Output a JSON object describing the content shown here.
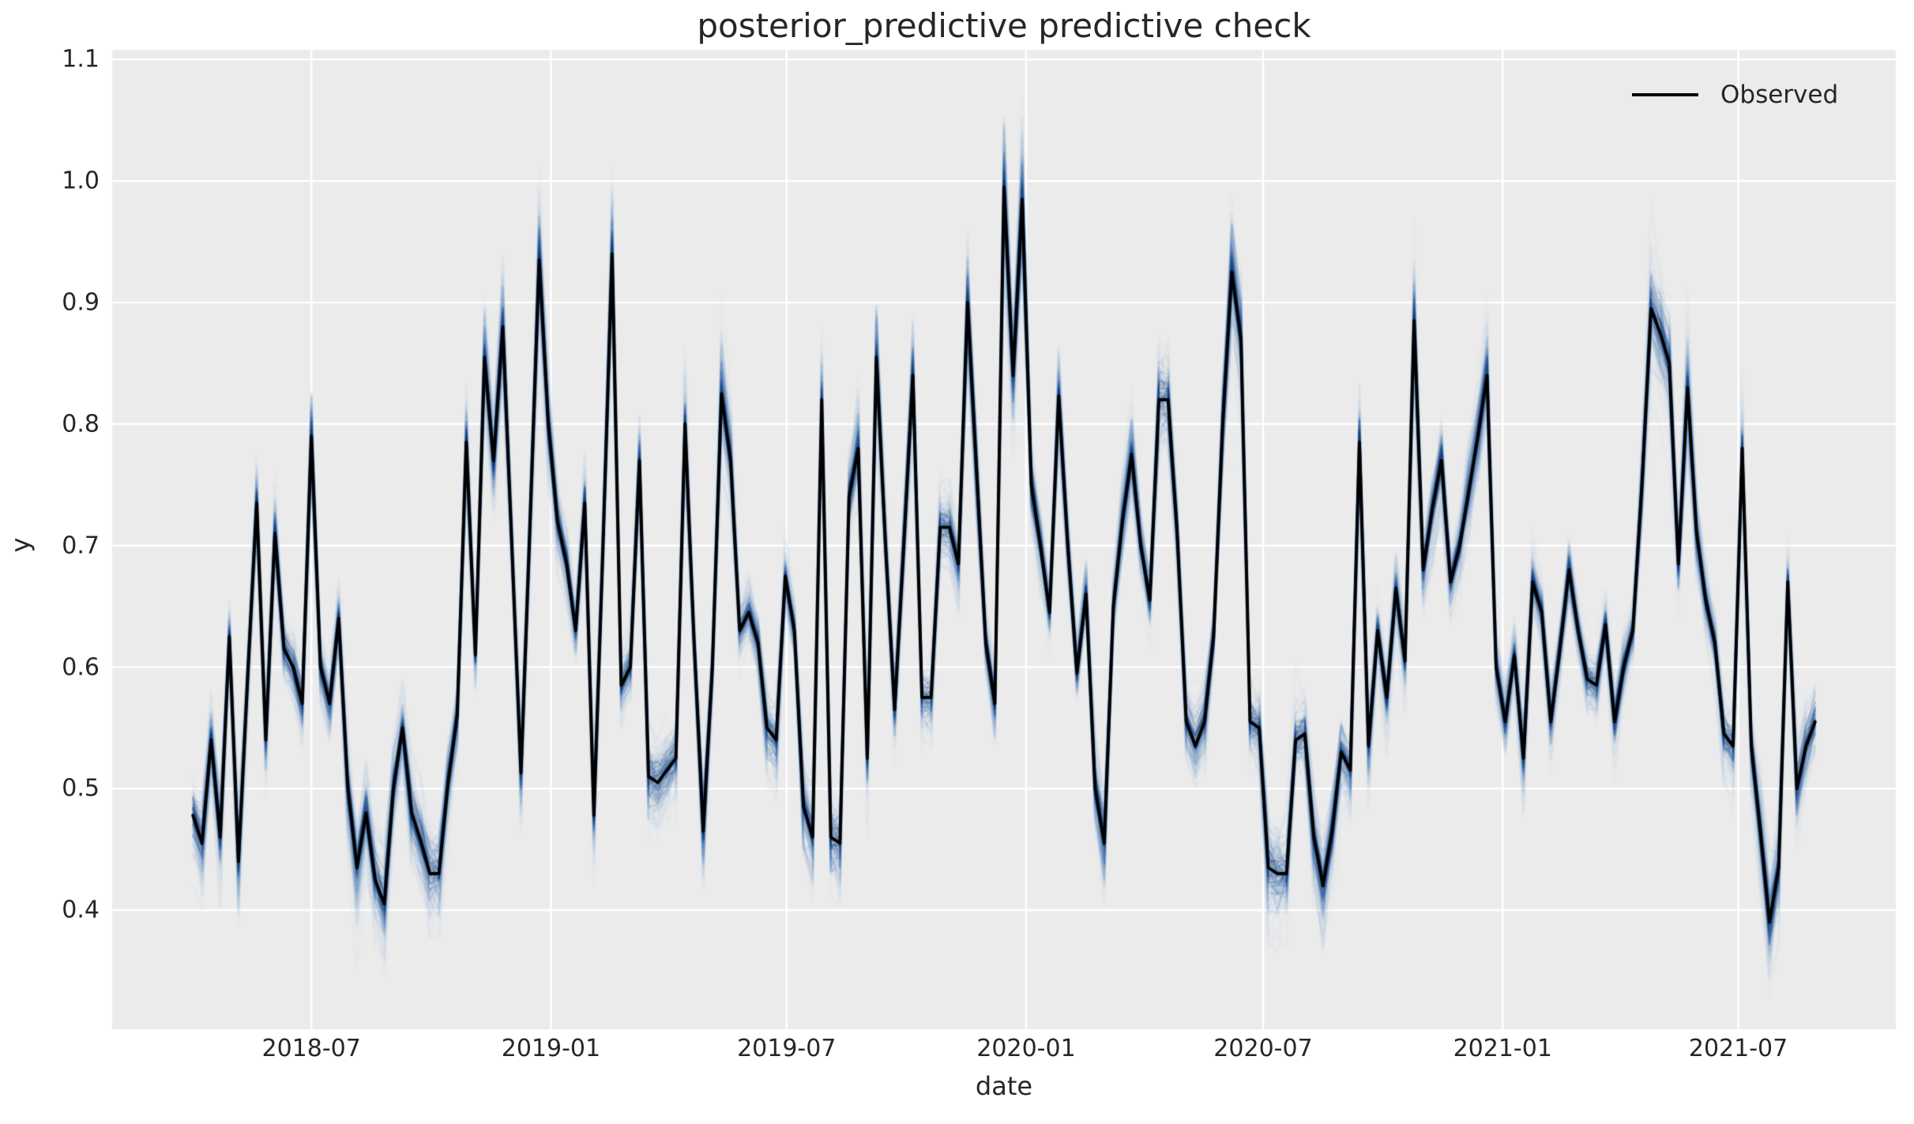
{
  "title": "posterior_predictive predictive check",
  "legend": {
    "items": [
      {
        "label": "Observed",
        "marker": "black-line"
      }
    ]
  },
  "colors": {
    "figure_bg": "#ffffff",
    "plot_bg": "#ebebeb",
    "grid": "#ffffff",
    "observed_line": "#000000",
    "sample_light": "rgba(140,185,221,0.055)",
    "sample_mid": "rgba(58,118,178,0.07)",
    "sample_dark": "rgba(10,55,110,0.115)",
    "text": "#262626"
  },
  "chart_data": {
    "type": "line",
    "title": "posterior_predictive predictive check",
    "xlabel": "date",
    "ylabel": "y",
    "grid": true,
    "legend_position": "upper right",
    "ylim": [
      0.302,
      1.108
    ],
    "xlim": [
      "2018-01-29",
      "2021-10-30"
    ],
    "y_ticks": [
      1.1,
      1.0,
      0.9,
      0.8,
      0.7,
      0.6,
      0.5,
      0.4
    ],
    "y_tick_labels": [
      "1.1",
      "1.0",
      "0.9",
      "0.8",
      "0.7",
      "0.6",
      "0.5",
      "0.4"
    ],
    "x_ticks": [
      "2018-07-01",
      "2019-01-01",
      "2019-07-01",
      "2020-01-01",
      "2020-07-01",
      "2021-01-01",
      "2021-07-01"
    ],
    "x_tick_labels": [
      "2018-07",
      "2019-01",
      "2019-07",
      "2020-01",
      "2020-07",
      "2021-01",
      "2021-07"
    ],
    "series_name": "Observed",
    "observed": {
      "dates": [
        "2018-04-01",
        "2018-04-08",
        "2018-04-15",
        "2018-04-22",
        "2018-04-29",
        "2018-05-06",
        "2018-05-13",
        "2018-05-20",
        "2018-05-27",
        "2018-06-03",
        "2018-06-10",
        "2018-06-17",
        "2018-06-24",
        "2018-07-01",
        "2018-07-08",
        "2018-07-15",
        "2018-07-22",
        "2018-07-29",
        "2018-08-05",
        "2018-08-12",
        "2018-08-19",
        "2018-08-26",
        "2018-09-02",
        "2018-09-09",
        "2018-09-16",
        "2018-09-23",
        "2018-09-30",
        "2018-10-07",
        "2018-10-14",
        "2018-10-21",
        "2018-10-28",
        "2018-11-04",
        "2018-11-11",
        "2018-11-18",
        "2018-11-25",
        "2018-12-02",
        "2018-12-09",
        "2018-12-16",
        "2018-12-23",
        "2018-12-30",
        "2019-01-06",
        "2019-01-13",
        "2019-01-20",
        "2019-01-27",
        "2019-02-03",
        "2019-02-10",
        "2019-02-17",
        "2019-02-24",
        "2019-03-03",
        "2019-03-10",
        "2019-03-17",
        "2019-03-24",
        "2019-03-31",
        "2019-04-07",
        "2019-04-14",
        "2019-04-21",
        "2019-04-28",
        "2019-05-05",
        "2019-05-12",
        "2019-05-19",
        "2019-05-26",
        "2019-06-02",
        "2019-06-09",
        "2019-06-16",
        "2019-06-23",
        "2019-06-30",
        "2019-07-07",
        "2019-07-14",
        "2019-07-21",
        "2019-07-28",
        "2019-08-04",
        "2019-08-11",
        "2019-08-18",
        "2019-08-25",
        "2019-09-01",
        "2019-09-08",
        "2019-09-15",
        "2019-09-22",
        "2019-09-29",
        "2019-10-06",
        "2019-10-13",
        "2019-10-20",
        "2019-10-27",
        "2019-11-03",
        "2019-11-10",
        "2019-11-17",
        "2019-11-24",
        "2019-12-01",
        "2019-12-08",
        "2019-12-15",
        "2019-12-22",
        "2019-12-29",
        "2020-01-05",
        "2020-01-12",
        "2020-01-19",
        "2020-01-26",
        "2020-02-02",
        "2020-02-09",
        "2020-02-16",
        "2020-02-23",
        "2020-03-01",
        "2020-03-08",
        "2020-03-15",
        "2020-03-22",
        "2020-03-29",
        "2020-04-05",
        "2020-04-12",
        "2020-04-19",
        "2020-04-26",
        "2020-05-03",
        "2020-05-10",
        "2020-05-17",
        "2020-05-24",
        "2020-05-31",
        "2020-06-07",
        "2020-06-14",
        "2020-06-21",
        "2020-06-28",
        "2020-07-05",
        "2020-07-12",
        "2020-07-19",
        "2020-07-26",
        "2020-08-02",
        "2020-08-09",
        "2020-08-16",
        "2020-08-23",
        "2020-08-30",
        "2020-09-06",
        "2020-09-13",
        "2020-09-20",
        "2020-09-27",
        "2020-10-04",
        "2020-10-11",
        "2020-10-18",
        "2020-10-25",
        "2020-11-01",
        "2020-11-08",
        "2020-11-15",
        "2020-11-22",
        "2020-11-29",
        "2020-12-06",
        "2020-12-13",
        "2020-12-20",
        "2020-12-27",
        "2021-01-03",
        "2021-01-10",
        "2021-01-17",
        "2021-01-24",
        "2021-01-31",
        "2021-02-07",
        "2021-02-14",
        "2021-02-21",
        "2021-02-28",
        "2021-03-07",
        "2021-03-14",
        "2021-03-21",
        "2021-03-28",
        "2021-04-04",
        "2021-04-11",
        "2021-04-18",
        "2021-04-25",
        "2021-05-02",
        "2021-05-09",
        "2021-05-16",
        "2021-05-23",
        "2021-05-30",
        "2021-06-06",
        "2021-06-13",
        "2021-06-20",
        "2021-06-27",
        "2021-07-04",
        "2021-07-11",
        "2021-07-18",
        "2021-07-25",
        "2021-08-01",
        "2021-08-08",
        "2021-08-15",
        "2021-08-22",
        "2021-08-29"
      ],
      "values": [
        0.478,
        0.455,
        0.54,
        0.46,
        0.625,
        0.44,
        0.59,
        0.735,
        0.54,
        0.71,
        0.615,
        0.6,
        0.57,
        0.79,
        0.6,
        0.57,
        0.64,
        0.5,
        0.435,
        0.48,
        0.425,
        0.405,
        0.5,
        0.55,
        0.48,
        0.457,
        0.43,
        0.43,
        0.505,
        0.56,
        0.785,
        0.61,
        0.855,
        0.77,
        0.88,
        0.7,
        0.513,
        0.72,
        0.935,
        0.8,
        0.72,
        0.685,
        0.63,
        0.735,
        0.478,
        0.7,
        0.94,
        0.585,
        0.6,
        0.77,
        0.51,
        0.505,
        0.515,
        0.525,
        0.8,
        0.62,
        0.465,
        0.6,
        0.825,
        0.77,
        0.63,
        0.645,
        0.62,
        0.55,
        0.54,
        0.675,
        0.63,
        0.485,
        0.46,
        0.82,
        0.46,
        0.455,
        0.74,
        0.78,
        0.525,
        0.855,
        0.7,
        0.565,
        0.7,
        0.84,
        0.575,
        0.575,
        0.715,
        0.715,
        0.685,
        0.9,
        0.76,
        0.62,
        0.57,
        0.995,
        0.84,
        0.985,
        0.75,
        0.7,
        0.645,
        0.823,
        0.7,
        0.595,
        0.66,
        0.5,
        0.455,
        0.65,
        0.72,
        0.775,
        0.7,
        0.655,
        0.82,
        0.82,
        0.71,
        0.555,
        0.535,
        0.555,
        0.625,
        0.8,
        0.925,
        0.87,
        0.555,
        0.55,
        0.435,
        0.43,
        0.43,
        0.54,
        0.545,
        0.46,
        0.42,
        0.465,
        0.53,
        0.515,
        0.785,
        0.535,
        0.63,
        0.575,
        0.665,
        0.605,
        0.885,
        0.68,
        0.73,
        0.77,
        0.67,
        0.7,
        0.745,
        0.79,
        0.84,
        0.6,
        0.555,
        0.61,
        0.525,
        0.67,
        0.645,
        0.555,
        0.615,
        0.68,
        0.63,
        0.59,
        0.585,
        0.635,
        0.555,
        0.6,
        0.63,
        0.75,
        0.895,
        0.875,
        0.85,
        0.685,
        0.83,
        0.71,
        0.655,
        0.62,
        0.545,
        0.535,
        0.78,
        0.535,
        0.465,
        0.39,
        0.435,
        0.67,
        0.5,
        0.535,
        0.555
      ]
    },
    "posterior_predictive_band": {
      "description": "many translucent blue posterior predictive sample trajectories around observed",
      "typical_spread": 0.03,
      "max_spread_at_extremes": 0.07
    }
  }
}
